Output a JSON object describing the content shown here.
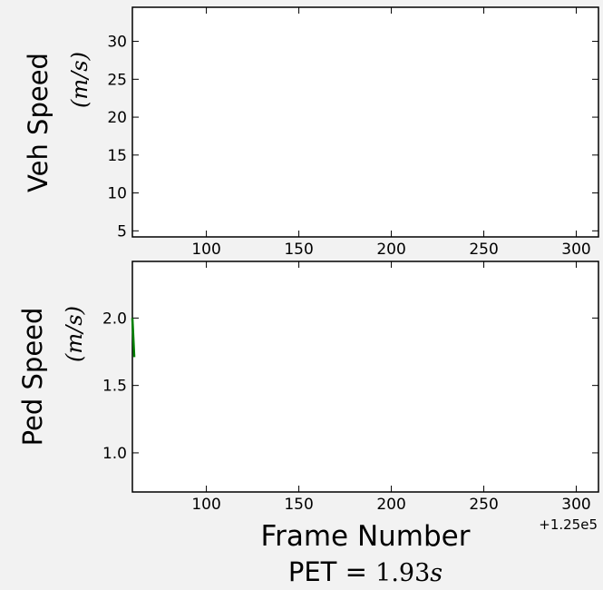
{
  "chart_data": [
    {
      "type": "line",
      "ylabel": "Veh Speed",
      "ylabel_unit": "(m/s)",
      "xlim": [
        60,
        312
      ],
      "ylim": [
        4.2,
        34.5
      ],
      "xticks": [
        100,
        150,
        200,
        250,
        300
      ],
      "yticks": [
        5,
        10,
        15,
        20,
        25,
        30
      ],
      "grid": false,
      "series": [
        {
          "color": "#008000",
          "x": [],
          "y": []
        }
      ]
    },
    {
      "type": "line",
      "ylabel": "Ped Speed",
      "ylabel_unit": "(m/s)",
      "xlabel": "Frame Number",
      "x_offset_label": "+1.25e5",
      "xlim": [
        60,
        312
      ],
      "ylim": [
        0.71,
        2.42
      ],
      "xticks": [
        100,
        150,
        200,
        250,
        300
      ],
      "yticks": [
        1.0,
        1.5,
        2.0
      ],
      "grid": false,
      "series": [
        {
          "color": "#008000",
          "x": [
            60,
            61
          ],
          "y": [
            2.0,
            1.71
          ]
        }
      ]
    }
  ],
  "annotation": {
    "prefix": "PET = ",
    "value": "1.93",
    "unit": "s"
  }
}
